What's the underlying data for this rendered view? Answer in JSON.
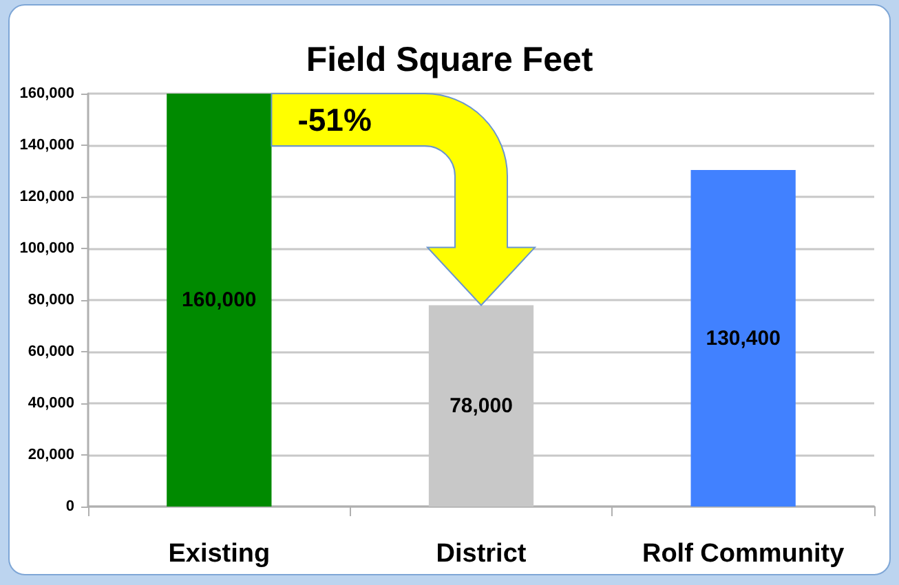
{
  "chart_data": {
    "type": "bar",
    "title": "Field Square Feet",
    "categories": [
      "Existing",
      "District",
      "Rolf Community"
    ],
    "values": [
      160000,
      78000,
      130400
    ],
    "colors": [
      "#008a00",
      "#c8c8c8",
      "#4181ff"
    ],
    "value_labels": [
      "160,000",
      "78,000",
      "130,400"
    ],
    "ylim": [
      0,
      160000
    ],
    "yticks": [
      {
        "value": 0,
        "label": "0"
      },
      {
        "value": 20000,
        "label": "20,000"
      },
      {
        "value": 40000,
        "label": "40,000"
      },
      {
        "value": 60000,
        "label": "60,000"
      },
      {
        "value": 80000,
        "label": "80,000"
      },
      {
        "value": 100000,
        "label": "100,000"
      },
      {
        "value": 120000,
        "label": "120,000"
      },
      {
        "value": 140000,
        "label": "140,000"
      },
      {
        "value": 160000,
        "label": "160,000"
      }
    ],
    "grid": "y",
    "annotations": [
      "-51%"
    ]
  }
}
